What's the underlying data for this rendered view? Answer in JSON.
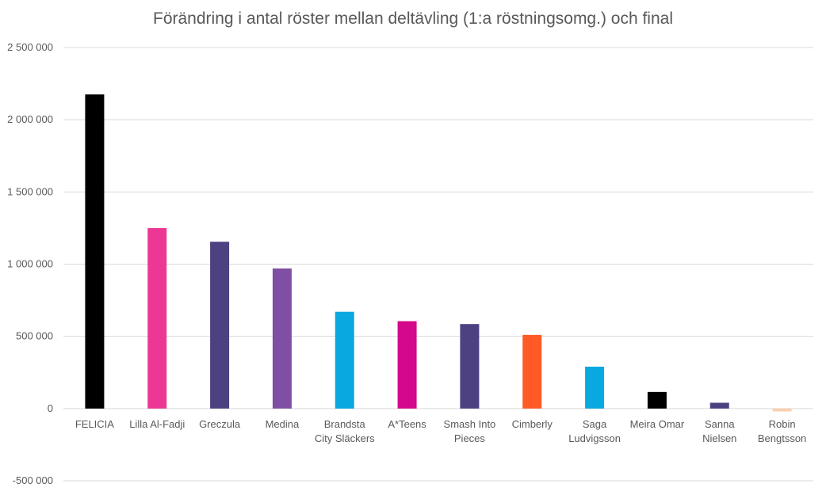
{
  "chart_data": {
    "type": "bar",
    "title": "Förändring i antal röster mellan deltävling (1:a röstningsomg.) och final",
    "xlabel": "",
    "ylabel": "",
    "ylim": [
      -500000,
      2500000
    ],
    "yticks": [
      -500000,
      0,
      500000,
      1000000,
      1500000,
      2000000,
      2500000
    ],
    "ytick_labels": [
      "-500 000",
      "0",
      "500 000",
      "1 000 000",
      "1 500 000",
      "2 000 000",
      "2 500 000"
    ],
    "grid": true,
    "legend": "none",
    "categories": [
      [
        "FELICIA"
      ],
      [
        "Lilla Al-Fadji"
      ],
      [
        "Greczula"
      ],
      [
        "Medina"
      ],
      [
        "Brandsta",
        "City Släckers"
      ],
      [
        "A*Teens"
      ],
      [
        "Smash Into",
        "Pieces"
      ],
      [
        "Cimberly"
      ],
      [
        "Saga",
        "Ludvigsson"
      ],
      [
        "Meira Omar"
      ],
      [
        "Sanna",
        "Nielsen"
      ],
      [
        "Robin",
        "Bengtsson"
      ]
    ],
    "values": [
      2175000,
      1250000,
      1155000,
      970000,
      670000,
      605000,
      585000,
      510000,
      290000,
      115000,
      40000,
      -20000
    ],
    "colors": [
      "#000000",
      "#EC3894",
      "#4E4182",
      "#7F4FA3",
      "#0AA8E0",
      "#D4088A",
      "#4E4182",
      "#FF5A26",
      "#0AA8E0",
      "#000000",
      "#4E4182",
      "#FCCFAF"
    ]
  }
}
